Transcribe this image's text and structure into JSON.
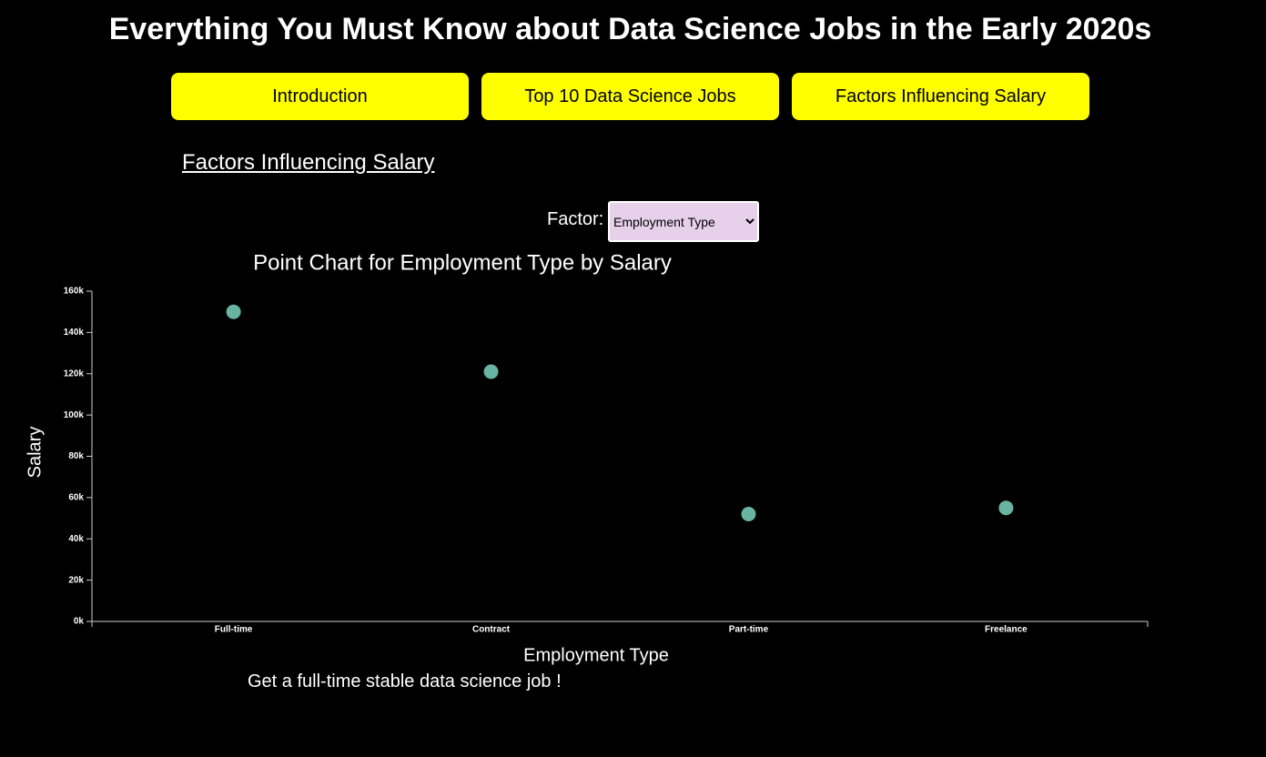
{
  "header": {
    "title": "Everything You Must Know about Data Science Jobs in the Early 2020s"
  },
  "nav": {
    "buttons": [
      "Introduction",
      "Top 10 Data Science Jobs",
      "Factors Influencing Salary"
    ]
  },
  "section": {
    "title": "Factors Influencing Salary"
  },
  "factor_select": {
    "label": "Factor:",
    "selected": "Employment Type"
  },
  "chart_data": {
    "type": "scatter",
    "title": "Point Chart for Employment Type by Salary",
    "x_label": "Employment Type",
    "y_label": "Salary",
    "categories": [
      "Full-time",
      "Contract",
      "Part-time",
      "Freelance"
    ],
    "values": [
      150000,
      121000,
      52000,
      55000
    ],
    "color": "#69b3a2",
    "ylim": [
      0,
      160000
    ],
    "yticks": [
      {
        "value": 0,
        "label": "0k"
      },
      {
        "value": 20000,
        "label": "20k"
      },
      {
        "value": 40000,
        "label": "40k"
      },
      {
        "value": 60000,
        "label": "60k"
      },
      {
        "value": 80000,
        "label": "80k"
      },
      {
        "value": 100000,
        "label": "100k"
      },
      {
        "value": 120000,
        "label": "120k"
      },
      {
        "value": 140000,
        "label": "140k"
      },
      {
        "value": 160000,
        "label": "160k"
      }
    ]
  },
  "note": {
    "text": "Get a full-time stable data science job !"
  }
}
